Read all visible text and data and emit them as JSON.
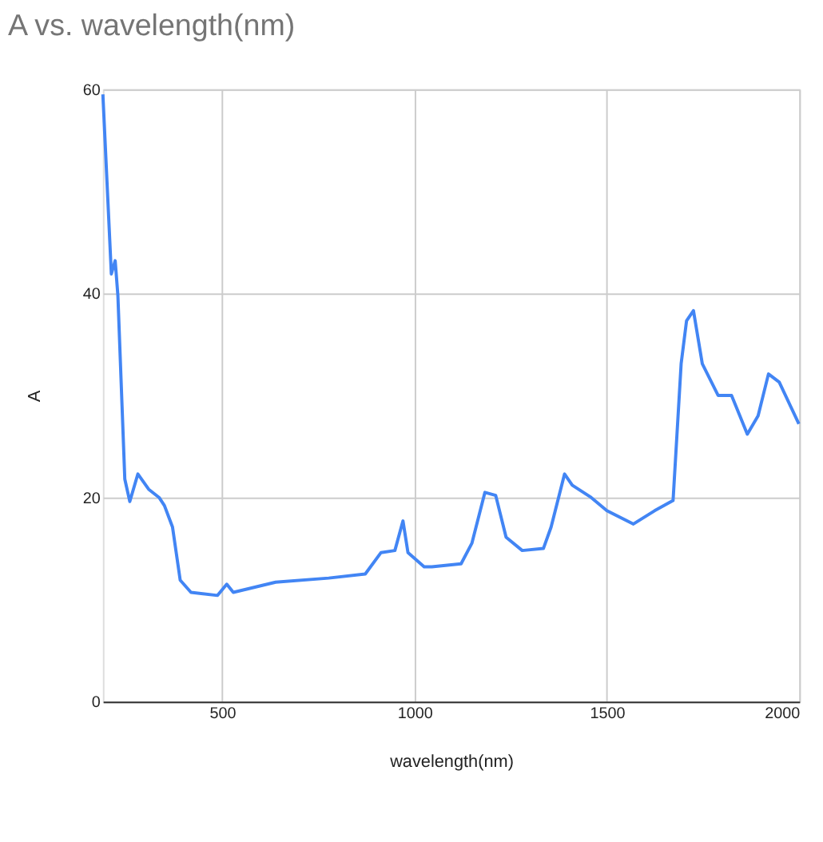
{
  "chart_data": {
    "type": "line",
    "title": "A vs. wavelength(nm)",
    "xlabel": "wavelength(nm)",
    "ylabel": "A",
    "x": [
      190,
      212,
      222,
      229,
      247,
      260,
      281,
      309,
      336,
      350,
      371,
      391,
      419,
      488,
      512,
      529,
      639,
      777,
      872,
      913,
      949,
      970,
      983,
      1025,
      1045,
      1121,
      1149,
      1183,
      1211,
      1238,
      1280,
      1335,
      1355,
      1390,
      1410,
      1459,
      1500,
      1569,
      1624,
      1672,
      1693,
      1707,
      1725,
      1748,
      1789,
      1824,
      1865,
      1893,
      1920,
      1948,
      1999
    ],
    "series": [
      {
        "color": "#4285f4",
        "values": [
          59.5,
          41.9,
          43.2,
          39.8,
          21.8,
          19.6,
          22.3,
          20.8,
          20.0,
          19.2,
          17.1,
          11.9,
          10.7,
          10.4,
          11.5,
          10.7,
          11.7,
          12.1,
          12.5,
          14.6,
          14.8,
          17.7,
          14.6,
          13.2,
          13.2,
          13.5,
          15.5,
          20.5,
          20.2,
          16.1,
          14.8,
          15.0,
          17.1,
          22.3,
          21.2,
          20.0,
          18.7,
          17.4,
          18.7,
          19.7,
          33.1,
          37.3,
          38.3,
          33.1,
          30.0,
          30.0,
          26.2,
          28.0,
          32.1,
          31.3,
          27.2
        ]
      }
    ],
    "xlim": [
      190,
      2000
    ],
    "ylim": [
      0,
      60
    ],
    "xticks": [
      500,
      1000,
      1500,
      2000
    ],
    "yticks": [
      0,
      20,
      40,
      60
    ],
    "grid": true,
    "legend": false
  }
}
